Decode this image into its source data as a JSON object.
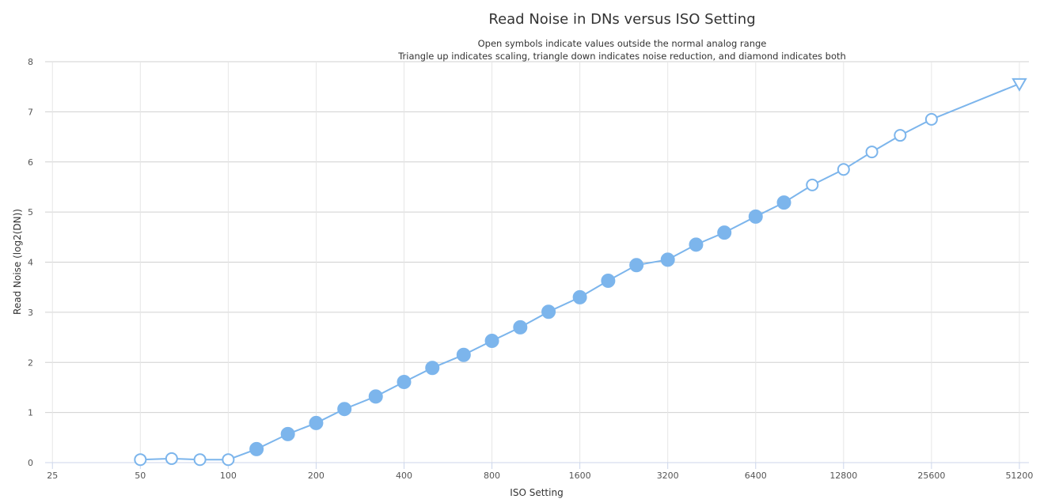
{
  "chart_data": {
    "type": "line",
    "title": "Read Noise in DNs versus ISO Setting",
    "subtitle": [
      "Open symbols indicate values outside the normal analog range",
      "Triangle up indicates scaling, triangle down indicates noise reduction, and diamond indicates both"
    ],
    "x_label": "ISO Setting",
    "y_label": "Read Noise (log2(DN))",
    "x_scale": "log2",
    "xlim": [
      23.6,
      55200
    ],
    "xticks": [
      25,
      50,
      100,
      200,
      400,
      800,
      1600,
      3200,
      6400,
      12800,
      25600,
      51200
    ],
    "ylim": [
      0,
      8
    ],
    "yticks": [
      0,
      1,
      2,
      3,
      4,
      5,
      6,
      7,
      8
    ],
    "grid": true,
    "x": [
      50,
      64,
      80,
      100,
      125,
      160,
      200,
      250,
      320,
      400,
      500,
      640,
      800,
      1000,
      1250,
      1600,
      2000,
      2500,
      3200,
      4000,
      5000,
      6400,
      8000,
      10000,
      12800,
      16000,
      20000,
      25600,
      51200
    ],
    "series": [
      {
        "color": "#7cb5ec",
        "values": [
          0.06,
          0.08,
          0.06,
          0.06,
          0.27,
          0.57,
          0.79,
          1.07,
          1.32,
          1.61,
          1.89,
          2.15,
          2.43,
          2.7,
          3.01,
          3.3,
          3.63,
          3.94,
          4.05,
          4.35,
          4.59,
          4.91,
          5.19,
          5.54,
          5.85,
          6.2,
          6.53,
          6.85,
          7.56
        ],
        "markers": [
          "circle-open",
          "circle-open",
          "circle-open",
          "circle-open",
          "circle",
          "circle",
          "circle",
          "circle",
          "circle",
          "circle",
          "circle",
          "circle",
          "circle",
          "circle",
          "circle",
          "circle",
          "circle",
          "circle",
          "circle",
          "circle",
          "circle",
          "circle",
          "circle",
          "circle-open",
          "circle-open",
          "circle-open",
          "circle-open",
          "circle-open",
          "triangle-down-open"
        ]
      }
    ]
  }
}
